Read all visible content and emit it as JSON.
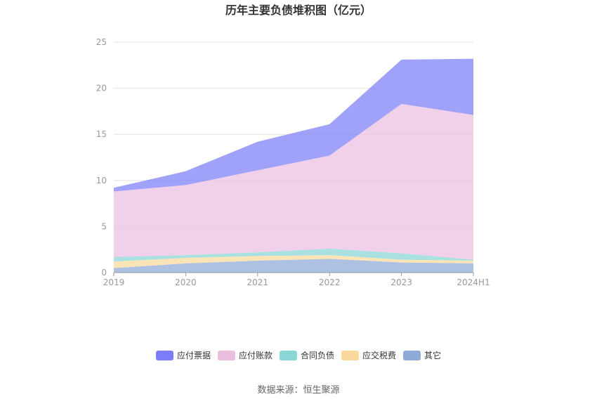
{
  "chart_data": {
    "type": "area",
    "stacked": true,
    "title": "历年主要负债堆积图（亿元）",
    "categories": [
      "2019",
      "2020",
      "2021",
      "2022",
      "2023",
      "2024H1"
    ],
    "ylim": [
      0,
      25
    ],
    "yticks": [
      "0",
      "5",
      "10",
      "15",
      "20",
      "25"
    ],
    "grid": true,
    "legend_position": "bottom",
    "series": [
      {
        "name": "其它",
        "color": "#8eaad8",
        "values": [
          0.5,
          1.0,
          1.3,
          1.5,
          1.1,
          1.0
        ]
      },
      {
        "name": "应交税费",
        "color": "#fcd99a",
        "values": [
          0.7,
          0.6,
          0.5,
          0.4,
          0.3,
          0.3
        ]
      },
      {
        "name": "合同负债",
        "color": "#88d6d6",
        "values": [
          0.5,
          0.3,
          0.4,
          0.7,
          0.7,
          0.1
        ]
      },
      {
        "name": "应付账款",
        "color": "#ebbee0",
        "values": [
          7.1,
          7.6,
          8.9,
          10.1,
          16.2,
          15.7
        ]
      },
      {
        "name": "应付票据",
        "color": "#7b7ef8",
        "values": [
          0.4,
          1.5,
          3.1,
          3.4,
          4.8,
          6.1
        ]
      }
    ],
    "source": "数据来源：恒生聚源"
  }
}
